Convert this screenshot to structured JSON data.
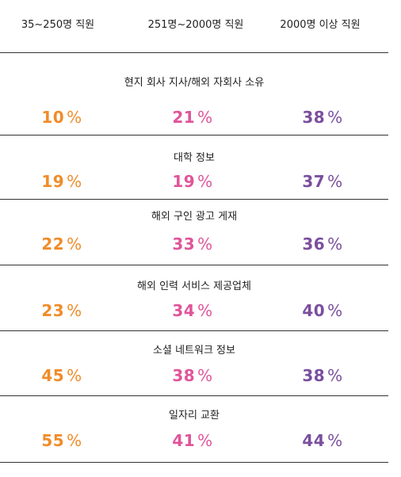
{
  "colors": {
    "small": "#f08c2a",
    "medium": "#e0559a",
    "large": "#7a4f9e"
  },
  "columns": [
    "35~250명 직원",
    "251명~2000명 직원",
    "2000명 이상 직원"
  ],
  "percent_sign": "%",
  "rows": [
    {
      "label": "현지 회사 지사/해외 자회사 소유",
      "values": [
        "10",
        "21",
        "38"
      ]
    },
    {
      "label": "대학 정보",
      "values": [
        "19",
        "19",
        "37"
      ]
    },
    {
      "label": "해외 구인 광고 게재",
      "values": [
        "22",
        "33",
        "36"
      ]
    },
    {
      "label": "해외 인력 서비스 제공업체",
      "values": [
        "23",
        "34",
        "40"
      ]
    },
    {
      "label": "소셜 네트워크 정보",
      "values": [
        "45",
        "38",
        "38"
      ]
    },
    {
      "label": "일자리 교환",
      "values": [
        "55",
        "41",
        "44"
      ]
    }
  ]
}
